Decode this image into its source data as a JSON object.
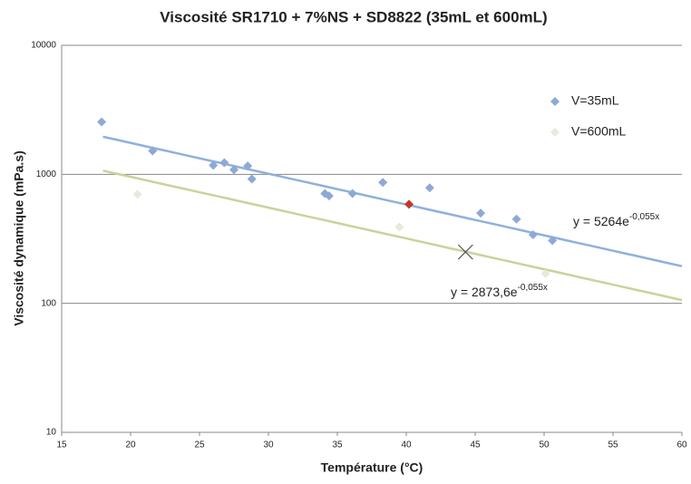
{
  "chart_data": {
    "type": "scatter",
    "title": "Viscosité SR1710 + 7%NS + SD8822 (35mL et 600mL)",
    "xlabel": "Température (°C)",
    "ylabel": "Viscosité dynamique  (mPa.s)",
    "xlim": [
      15,
      60
    ],
    "xticks": [
      15,
      20,
      25,
      30,
      35,
      40,
      45,
      50,
      55,
      60
    ],
    "ylim": [
      10,
      10000
    ],
    "yticks": [
      10,
      100,
      1000,
      10000
    ],
    "log_y": true,
    "grid": true,
    "legend": "upper right",
    "series": [
      {
        "name": "V=35mL",
        "color": "#8ea9d6",
        "marker": "diamond",
        "x": [
          17.9,
          21.6,
          26.0,
          26.8,
          27.5,
          28.5,
          28.8,
          34.1,
          34.4,
          36.1,
          38.3,
          41.7,
          45.4,
          48.0,
          49.2,
          50.6
        ],
        "values": [
          2550,
          1520,
          1175,
          1230,
          1085,
          1160,
          920,
          710,
          680,
          710,
          865,
          785,
          500,
          450,
          340,
          307
        ]
      },
      {
        "name": "V=600mL",
        "color": "#e6e9dc",
        "marker": "diamond",
        "x": [
          20.5,
          39.5,
          50.1
        ],
        "values": [
          700,
          390,
          170
        ]
      },
      {
        "color": "#c0392b",
        "marker": "diamond",
        "x": [
          40.2
        ],
        "values": [
          586
        ]
      },
      {
        "color": "#555555",
        "marker": "x",
        "x": [
          44.3
        ],
        "values": [
          250
        ]
      }
    ],
    "trendlines": [
      {
        "a": 5264,
        "b": -0.055,
        "xrange": [
          18,
          60
        ],
        "color": "#8fb0dc",
        "label": "y = 5264e",
        "label_exp": "-0,055x"
      },
      {
        "a": 2873.6,
        "b": -0.055,
        "xrange": [
          18,
          60
        ],
        "color": "#c9d39a",
        "label": "y = 2873,6e",
        "label_exp": "-0,055x"
      }
    ]
  }
}
